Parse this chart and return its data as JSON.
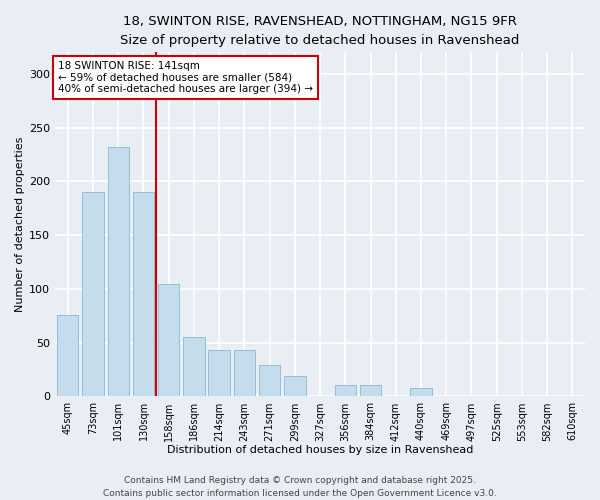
{
  "title_line1": "18, SWINTON RISE, RAVENSHEAD, NOTTINGHAM, NG15 9FR",
  "title_line2": "Size of property relative to detached houses in Ravenshead",
  "categories": [
    "45sqm",
    "73sqm",
    "101sqm",
    "130sqm",
    "158sqm",
    "186sqm",
    "214sqm",
    "243sqm",
    "271sqm",
    "299sqm",
    "327sqm",
    "356sqm",
    "384sqm",
    "412sqm",
    "440sqm",
    "469sqm",
    "497sqm",
    "525sqm",
    "553sqm",
    "582sqm",
    "610sqm"
  ],
  "values": [
    76,
    190,
    232,
    190,
    105,
    55,
    43,
    43,
    29,
    19,
    0,
    11,
    11,
    0,
    8,
    0,
    0,
    0,
    0,
    0,
    0
  ],
  "bar_color": "#c5dced",
  "bar_edge_color": "#89b8d4",
  "marker_bar_index": 3,
  "marker_label": "18 SWINTON RISE: 141sqm",
  "annotation_line1": "← 59% of detached houses are smaller (584)",
  "annotation_line2": "40% of semi-detached houses are larger (394) →",
  "xlabel": "Distribution of detached houses by size in Ravenshead",
  "ylabel": "Number of detached properties",
  "ylim": [
    0,
    320
  ],
  "yticks": [
    0,
    50,
    100,
    150,
    200,
    250,
    300
  ],
  "footer_line1": "Contains HM Land Registry data © Crown copyright and database right 2025.",
  "footer_line2": "Contains public sector information licensed under the Open Government Licence v3.0.",
  "bg_color": "#e8eef4",
  "grid_color": "#ffffff",
  "annotation_box_color": "#ffffff",
  "annotation_box_edge": "#cc0000",
  "marker_line_color": "#cc0000",
  "title_fontsize": 9.5,
  "subtitle_fontsize": 8.5,
  "axis_label_fontsize": 8,
  "tick_fontsize": 7,
  "annotation_fontsize": 7.5,
  "footer_fontsize": 6.5
}
